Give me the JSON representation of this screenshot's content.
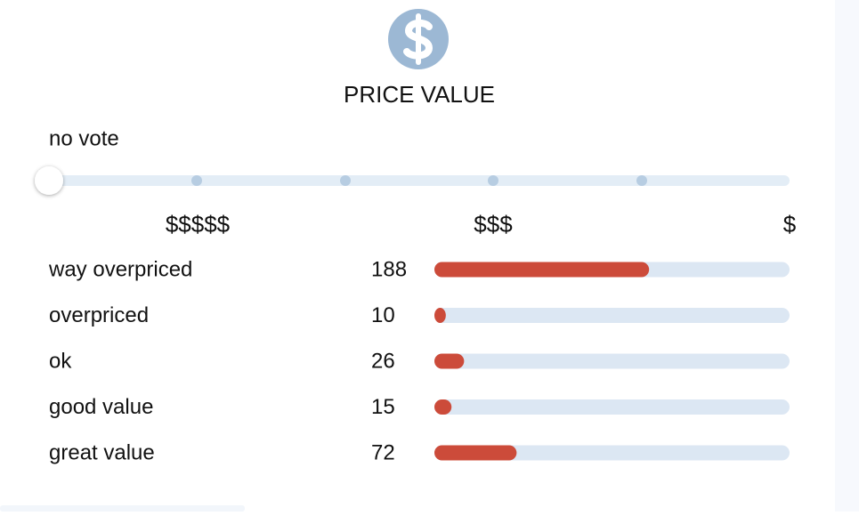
{
  "header": {
    "title": "PRICE VALUE"
  },
  "vote": {
    "label": "no vote",
    "scale_labels": [
      "$$$$$",
      "$$$",
      "$"
    ]
  },
  "ratings": [
    {
      "label": "way overpriced",
      "count": 188
    },
    {
      "label": "overpriced",
      "count": 10
    },
    {
      "label": "ok",
      "count": 26
    },
    {
      "label": "good value",
      "count": 15
    },
    {
      "label": "great value",
      "count": 72
    }
  ]
}
